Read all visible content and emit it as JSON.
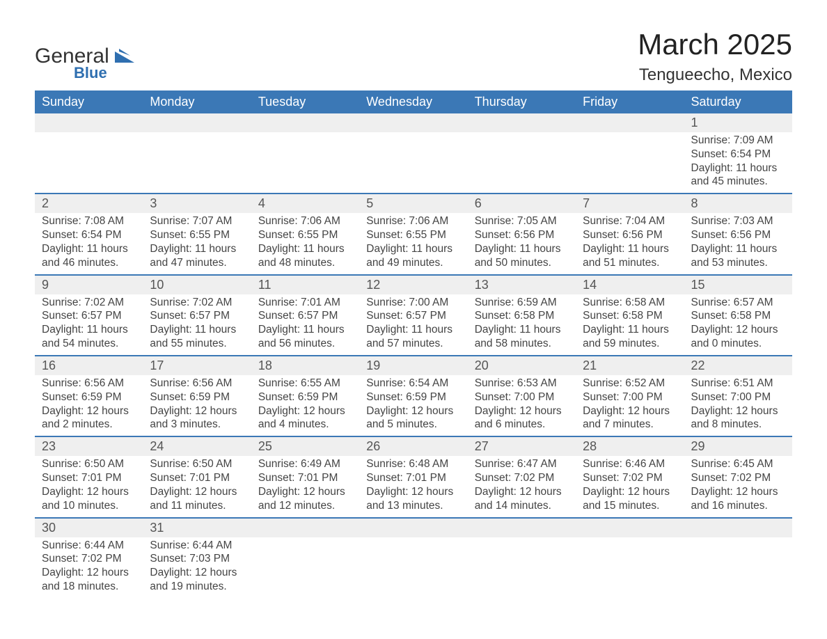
{
  "logo": {
    "general": "General",
    "blue": "Blue"
  },
  "title": "March 2025",
  "location": "Tengueecho, Mexico",
  "colors": {
    "header_bg": "#3b78b6",
    "header_text": "#ffffff",
    "row_border": "#3b78b6",
    "daynum_bg": "#efefef",
    "text": "#444444",
    "logo_blue": "#2f6fb0"
  },
  "weekdays": [
    "Sunday",
    "Monday",
    "Tuesday",
    "Wednesday",
    "Thursday",
    "Friday",
    "Saturday"
  ],
  "weeks": [
    {
      "nums": [
        "",
        "",
        "",
        "",
        "",
        "",
        "1"
      ],
      "cells": [
        null,
        null,
        null,
        null,
        null,
        null,
        {
          "sunrise": "Sunrise: 7:09 AM",
          "sunset": "Sunset: 6:54 PM",
          "day1": "Daylight: 11 hours",
          "day2": "and 45 minutes."
        }
      ]
    },
    {
      "nums": [
        "2",
        "3",
        "4",
        "5",
        "6",
        "7",
        "8"
      ],
      "cells": [
        {
          "sunrise": "Sunrise: 7:08 AM",
          "sunset": "Sunset: 6:54 PM",
          "day1": "Daylight: 11 hours",
          "day2": "and 46 minutes."
        },
        {
          "sunrise": "Sunrise: 7:07 AM",
          "sunset": "Sunset: 6:55 PM",
          "day1": "Daylight: 11 hours",
          "day2": "and 47 minutes."
        },
        {
          "sunrise": "Sunrise: 7:06 AM",
          "sunset": "Sunset: 6:55 PM",
          "day1": "Daylight: 11 hours",
          "day2": "and 48 minutes."
        },
        {
          "sunrise": "Sunrise: 7:06 AM",
          "sunset": "Sunset: 6:55 PM",
          "day1": "Daylight: 11 hours",
          "day2": "and 49 minutes."
        },
        {
          "sunrise": "Sunrise: 7:05 AM",
          "sunset": "Sunset: 6:56 PM",
          "day1": "Daylight: 11 hours",
          "day2": "and 50 minutes."
        },
        {
          "sunrise": "Sunrise: 7:04 AM",
          "sunset": "Sunset: 6:56 PM",
          "day1": "Daylight: 11 hours",
          "day2": "and 51 minutes."
        },
        {
          "sunrise": "Sunrise: 7:03 AM",
          "sunset": "Sunset: 6:56 PM",
          "day1": "Daylight: 11 hours",
          "day2": "and 53 minutes."
        }
      ]
    },
    {
      "nums": [
        "9",
        "10",
        "11",
        "12",
        "13",
        "14",
        "15"
      ],
      "cells": [
        {
          "sunrise": "Sunrise: 7:02 AM",
          "sunset": "Sunset: 6:57 PM",
          "day1": "Daylight: 11 hours",
          "day2": "and 54 minutes."
        },
        {
          "sunrise": "Sunrise: 7:02 AM",
          "sunset": "Sunset: 6:57 PM",
          "day1": "Daylight: 11 hours",
          "day2": "and 55 minutes."
        },
        {
          "sunrise": "Sunrise: 7:01 AM",
          "sunset": "Sunset: 6:57 PM",
          "day1": "Daylight: 11 hours",
          "day2": "and 56 minutes."
        },
        {
          "sunrise": "Sunrise: 7:00 AM",
          "sunset": "Sunset: 6:57 PM",
          "day1": "Daylight: 11 hours",
          "day2": "and 57 minutes."
        },
        {
          "sunrise": "Sunrise: 6:59 AM",
          "sunset": "Sunset: 6:58 PM",
          "day1": "Daylight: 11 hours",
          "day2": "and 58 minutes."
        },
        {
          "sunrise": "Sunrise: 6:58 AM",
          "sunset": "Sunset: 6:58 PM",
          "day1": "Daylight: 11 hours",
          "day2": "and 59 minutes."
        },
        {
          "sunrise": "Sunrise: 6:57 AM",
          "sunset": "Sunset: 6:58 PM",
          "day1": "Daylight: 12 hours",
          "day2": "and 0 minutes."
        }
      ]
    },
    {
      "nums": [
        "16",
        "17",
        "18",
        "19",
        "20",
        "21",
        "22"
      ],
      "cells": [
        {
          "sunrise": "Sunrise: 6:56 AM",
          "sunset": "Sunset: 6:59 PM",
          "day1": "Daylight: 12 hours",
          "day2": "and 2 minutes."
        },
        {
          "sunrise": "Sunrise: 6:56 AM",
          "sunset": "Sunset: 6:59 PM",
          "day1": "Daylight: 12 hours",
          "day2": "and 3 minutes."
        },
        {
          "sunrise": "Sunrise: 6:55 AM",
          "sunset": "Sunset: 6:59 PM",
          "day1": "Daylight: 12 hours",
          "day2": "and 4 minutes."
        },
        {
          "sunrise": "Sunrise: 6:54 AM",
          "sunset": "Sunset: 6:59 PM",
          "day1": "Daylight: 12 hours",
          "day2": "and 5 minutes."
        },
        {
          "sunrise": "Sunrise: 6:53 AM",
          "sunset": "Sunset: 7:00 PM",
          "day1": "Daylight: 12 hours",
          "day2": "and 6 minutes."
        },
        {
          "sunrise": "Sunrise: 6:52 AM",
          "sunset": "Sunset: 7:00 PM",
          "day1": "Daylight: 12 hours",
          "day2": "and 7 minutes."
        },
        {
          "sunrise": "Sunrise: 6:51 AM",
          "sunset": "Sunset: 7:00 PM",
          "day1": "Daylight: 12 hours",
          "day2": "and 8 minutes."
        }
      ]
    },
    {
      "nums": [
        "23",
        "24",
        "25",
        "26",
        "27",
        "28",
        "29"
      ],
      "cells": [
        {
          "sunrise": "Sunrise: 6:50 AM",
          "sunset": "Sunset: 7:01 PM",
          "day1": "Daylight: 12 hours",
          "day2": "and 10 minutes."
        },
        {
          "sunrise": "Sunrise: 6:50 AM",
          "sunset": "Sunset: 7:01 PM",
          "day1": "Daylight: 12 hours",
          "day2": "and 11 minutes."
        },
        {
          "sunrise": "Sunrise: 6:49 AM",
          "sunset": "Sunset: 7:01 PM",
          "day1": "Daylight: 12 hours",
          "day2": "and 12 minutes."
        },
        {
          "sunrise": "Sunrise: 6:48 AM",
          "sunset": "Sunset: 7:01 PM",
          "day1": "Daylight: 12 hours",
          "day2": "and 13 minutes."
        },
        {
          "sunrise": "Sunrise: 6:47 AM",
          "sunset": "Sunset: 7:02 PM",
          "day1": "Daylight: 12 hours",
          "day2": "and 14 minutes."
        },
        {
          "sunrise": "Sunrise: 6:46 AM",
          "sunset": "Sunset: 7:02 PM",
          "day1": "Daylight: 12 hours",
          "day2": "and 15 minutes."
        },
        {
          "sunrise": "Sunrise: 6:45 AM",
          "sunset": "Sunset: 7:02 PM",
          "day1": "Daylight: 12 hours",
          "day2": "and 16 minutes."
        }
      ]
    },
    {
      "nums": [
        "30",
        "31",
        "",
        "",
        "",
        "",
        ""
      ],
      "cells": [
        {
          "sunrise": "Sunrise: 6:44 AM",
          "sunset": "Sunset: 7:02 PM",
          "day1": "Daylight: 12 hours",
          "day2": "and 18 minutes."
        },
        {
          "sunrise": "Sunrise: 6:44 AM",
          "sunset": "Sunset: 7:03 PM",
          "day1": "Daylight: 12 hours",
          "day2": "and 19 minutes."
        },
        null,
        null,
        null,
        null,
        null
      ]
    }
  ]
}
